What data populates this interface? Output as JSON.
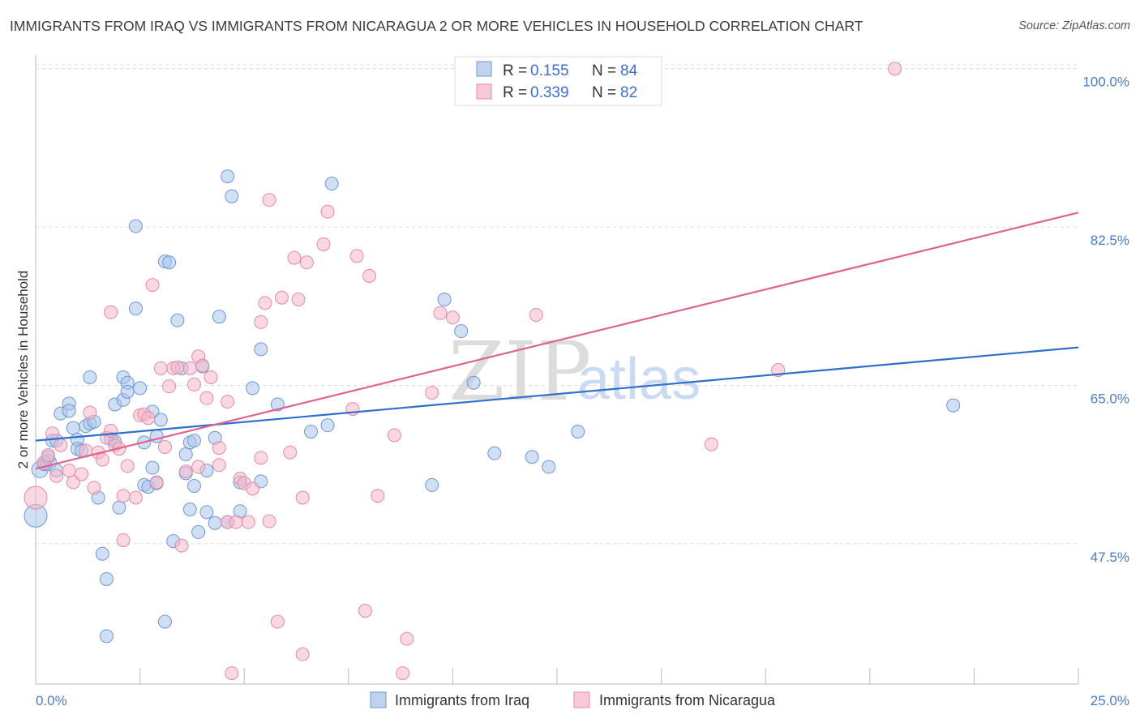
{
  "title": "IMMIGRANTS FROM IRAQ VS IMMIGRANTS FROM NICARAGUA 2 OR MORE VEHICLES IN HOUSEHOLD CORRELATION CHART",
  "source": "Source: ZipAtlas.com",
  "watermark": {
    "zip": "ZIP",
    "atlas": "atlas"
  },
  "legend_top": {
    "r_label": "R =",
    "n_label": "N =",
    "rows": [
      {
        "r": "0.155",
        "n": "84"
      },
      {
        "r": "0.339",
        "n": "82"
      }
    ]
  },
  "colors": {
    "iraq_fill": "#a9c4ea",
    "iraq_stroke": "#6d97d6",
    "iraq_line": "#2f6fcc",
    "nicaragua_fill": "#f4b8cb",
    "nicaragua_stroke": "#e68aa7",
    "nicaragua_line": "#e0628e",
    "tick": "#4a7cc9"
  },
  "chart_data": {
    "type": "scatter",
    "title": "IMMIGRANTS FROM IRAQ VS IMMIGRANTS FROM NICARAGUA 2 OR MORE VEHICLES IN HOUSEHOLD CORRELATION CHART",
    "xlabel": "",
    "ylabel": "2 or more Vehicles in Household",
    "xlim": [
      0,
      25
    ],
    "ylim": [
      32,
      101.5
    ],
    "x_tick_labels": [
      "0.0%",
      "25.0%"
    ],
    "y_ticks": [
      47.5,
      65.0,
      82.5,
      100.0
    ],
    "y_tick_labels": [
      "47.5%",
      "65.0%",
      "82.5%",
      "100.0%"
    ],
    "grid": true,
    "legend_position": "top-center",
    "series": [
      {
        "name": "Immigrants from Iraq",
        "r": 0.155,
        "n": 84,
        "trend": {
          "x": [
            0,
            25
          ],
          "y": [
            58.9,
            69.2
          ]
        },
        "points": [
          [
            0.0,
            50.6,
            14
          ],
          [
            0.1,
            55.7,
            10
          ],
          [
            0.2,
            56.3,
            8
          ],
          [
            0.3,
            56.5,
            10
          ],
          [
            0.3,
            57.1,
            8
          ],
          [
            0.4,
            58.9,
            8
          ],
          [
            0.5,
            58.9,
            8
          ],
          [
            0.5,
            55.6,
            8
          ],
          [
            0.6,
            61.9,
            8
          ],
          [
            0.8,
            63.0,
            8
          ],
          [
            0.8,
            62.2,
            8
          ],
          [
            0.9,
            60.3,
            8
          ],
          [
            1.0,
            59.0,
            8
          ],
          [
            1.0,
            58.0,
            8
          ],
          [
            1.1,
            57.8,
            8
          ],
          [
            1.2,
            60.5,
            8
          ],
          [
            1.3,
            60.8,
            8
          ],
          [
            1.3,
            65.9,
            8
          ],
          [
            1.4,
            61.0,
            8
          ],
          [
            1.5,
            52.6,
            8
          ],
          [
            1.6,
            46.4,
            8
          ],
          [
            1.7,
            43.6,
            8
          ],
          [
            1.7,
            37.3,
            8
          ],
          [
            1.8,
            59.1,
            8
          ],
          [
            1.9,
            58.8,
            8
          ],
          [
            1.9,
            62.9,
            8
          ],
          [
            2.0,
            51.5,
            8
          ],
          [
            2.1,
            65.9,
            8
          ],
          [
            2.1,
            63.4,
            8
          ],
          [
            2.2,
            65.3,
            8
          ],
          [
            2.2,
            64.3,
            8
          ],
          [
            2.4,
            73.5,
            8
          ],
          [
            2.4,
            82.6,
            8
          ],
          [
            2.5,
            64.7,
            8
          ],
          [
            2.6,
            54.0,
            8
          ],
          [
            2.6,
            58.7,
            8
          ],
          [
            2.7,
            53.8,
            8
          ],
          [
            2.8,
            62.1,
            8
          ],
          [
            2.8,
            55.9,
            8
          ],
          [
            2.9,
            59.4,
            8
          ],
          [
            2.9,
            54.2,
            8
          ],
          [
            3.0,
            61.2,
            8
          ],
          [
            3.1,
            38.9,
            8
          ],
          [
            3.1,
            78.7,
            8
          ],
          [
            3.2,
            78.6,
            8
          ],
          [
            3.3,
            47.8,
            8
          ],
          [
            3.4,
            72.2,
            8
          ],
          [
            3.5,
            66.9,
            8
          ],
          [
            3.6,
            55.3,
            8
          ],
          [
            3.6,
            57.4,
            8
          ],
          [
            3.7,
            58.7,
            8
          ],
          [
            3.7,
            51.3,
            8
          ],
          [
            3.8,
            58.9,
            8
          ],
          [
            3.8,
            53.9,
            8
          ],
          [
            3.9,
            48.8,
            8
          ],
          [
            4.0,
            67.1,
            8
          ],
          [
            4.1,
            55.6,
            8
          ],
          [
            4.1,
            51.0,
            8
          ],
          [
            4.3,
            59.2,
            8
          ],
          [
            4.3,
            49.8,
            8
          ],
          [
            4.4,
            72.6,
            8
          ],
          [
            4.6,
            49.9,
            8
          ],
          [
            4.6,
            88.1,
            8
          ],
          [
            4.7,
            85.9,
            8
          ],
          [
            4.9,
            54.3,
            8
          ],
          [
            4.9,
            51.1,
            8
          ],
          [
            5.2,
            64.7,
            8
          ],
          [
            5.4,
            69.0,
            8
          ],
          [
            5.4,
            54.4,
            8
          ],
          [
            5.8,
            62.9,
            8
          ],
          [
            6.6,
            59.9,
            8
          ],
          [
            7.0,
            60.6,
            8
          ],
          [
            7.1,
            87.3,
            8
          ],
          [
            9.5,
            54.0,
            8
          ],
          [
            9.8,
            74.5,
            8
          ],
          [
            10.2,
            71.0,
            8
          ],
          [
            10.5,
            65.3,
            8
          ],
          [
            11.0,
            57.5,
            8
          ],
          [
            11.9,
            57.1,
            8
          ],
          [
            12.3,
            56.0,
            8
          ],
          [
            13.0,
            59.9,
            8
          ],
          [
            22.0,
            62.8,
            8
          ]
        ]
      },
      {
        "name": "Immigrants from Nicaragua",
        "r": 0.339,
        "n": 82,
        "trend": {
          "x": [
            0,
            25
          ],
          "y": [
            55.8,
            84.1
          ]
        },
        "points": [
          [
            0.0,
            52.6,
            14
          ],
          [
            0.2,
            56.5,
            8
          ],
          [
            0.3,
            57.3,
            8
          ],
          [
            0.4,
            59.7,
            8
          ],
          [
            0.5,
            55.0,
            8
          ],
          [
            0.6,
            58.4,
            8
          ],
          [
            0.8,
            55.6,
            8
          ],
          [
            0.9,
            54.3,
            8
          ],
          [
            1.1,
            55.2,
            8
          ],
          [
            1.2,
            57.8,
            8
          ],
          [
            1.3,
            62.0,
            8
          ],
          [
            1.4,
            53.7,
            8
          ],
          [
            1.5,
            57.6,
            8
          ],
          [
            1.6,
            56.8,
            8
          ],
          [
            1.7,
            59.2,
            8
          ],
          [
            1.8,
            60.0,
            8
          ],
          [
            1.8,
            73.1,
            8
          ],
          [
            1.9,
            58.4,
            8
          ],
          [
            2.0,
            58.0,
            8
          ],
          [
            2.1,
            52.8,
            8
          ],
          [
            2.1,
            47.9,
            8
          ],
          [
            2.2,
            56.1,
            8
          ],
          [
            2.4,
            52.6,
            8
          ],
          [
            2.5,
            61.7,
            8
          ],
          [
            2.6,
            61.8,
            8
          ],
          [
            2.7,
            61.4,
            8
          ],
          [
            2.8,
            76.1,
            8
          ],
          [
            2.9,
            54.3,
            8
          ],
          [
            3.0,
            66.9,
            8
          ],
          [
            3.1,
            58.2,
            8
          ],
          [
            3.2,
            64.9,
            8
          ],
          [
            3.3,
            66.9,
            8
          ],
          [
            3.4,
            67.0,
            8
          ],
          [
            3.5,
            47.3,
            8
          ],
          [
            3.6,
            55.5,
            8
          ],
          [
            3.7,
            66.9,
            8
          ],
          [
            3.8,
            65.1,
            8
          ],
          [
            3.9,
            56.0,
            8
          ],
          [
            3.9,
            68.2,
            8
          ],
          [
            4.0,
            67.2,
            8
          ],
          [
            4.1,
            63.6,
            8
          ],
          [
            4.2,
            65.9,
            8
          ],
          [
            4.4,
            58.1,
            8
          ],
          [
            4.4,
            56.2,
            8
          ],
          [
            4.6,
            49.9,
            8
          ],
          [
            4.6,
            63.2,
            8
          ],
          [
            4.7,
            33.2,
            8
          ],
          [
            4.8,
            49.9,
            8
          ],
          [
            4.9,
            54.7,
            8
          ],
          [
            5.0,
            54.2,
            8
          ],
          [
            5.1,
            49.9,
            8
          ],
          [
            5.2,
            53.6,
            8
          ],
          [
            5.4,
            57.0,
            8
          ],
          [
            5.4,
            72.0,
            8
          ],
          [
            5.5,
            74.1,
            8
          ],
          [
            5.6,
            50.0,
            8
          ],
          [
            5.6,
            85.5,
            8
          ],
          [
            5.8,
            38.9,
            8
          ],
          [
            5.9,
            74.7,
            8
          ],
          [
            6.1,
            57.6,
            8
          ],
          [
            6.2,
            79.1,
            8
          ],
          [
            6.3,
            74.5,
            8
          ],
          [
            6.4,
            52.6,
            8
          ],
          [
            6.4,
            35.3,
            8
          ],
          [
            6.5,
            78.6,
            8
          ],
          [
            6.9,
            80.6,
            8
          ],
          [
            7.0,
            84.2,
            8
          ],
          [
            7.6,
            62.4,
            8
          ],
          [
            7.7,
            79.3,
            8
          ],
          [
            7.9,
            40.1,
            8
          ],
          [
            8.0,
            77.1,
            8
          ],
          [
            8.2,
            52.8,
            8
          ],
          [
            8.6,
            59.5,
            8
          ],
          [
            8.8,
            33.2,
            8
          ],
          [
            8.9,
            37.0,
            8
          ],
          [
            9.5,
            64.2,
            8
          ],
          [
            9.7,
            73.0,
            8
          ],
          [
            10.0,
            72.5,
            8
          ],
          [
            12.0,
            72.8,
            8
          ],
          [
            16.2,
            58.5,
            8
          ],
          [
            17.8,
            66.7,
            8
          ],
          [
            20.6,
            100.0,
            8
          ]
        ]
      }
    ]
  },
  "bottom_legend": [
    "Immigrants from Iraq",
    "Immigrants from Nicaragua"
  ]
}
